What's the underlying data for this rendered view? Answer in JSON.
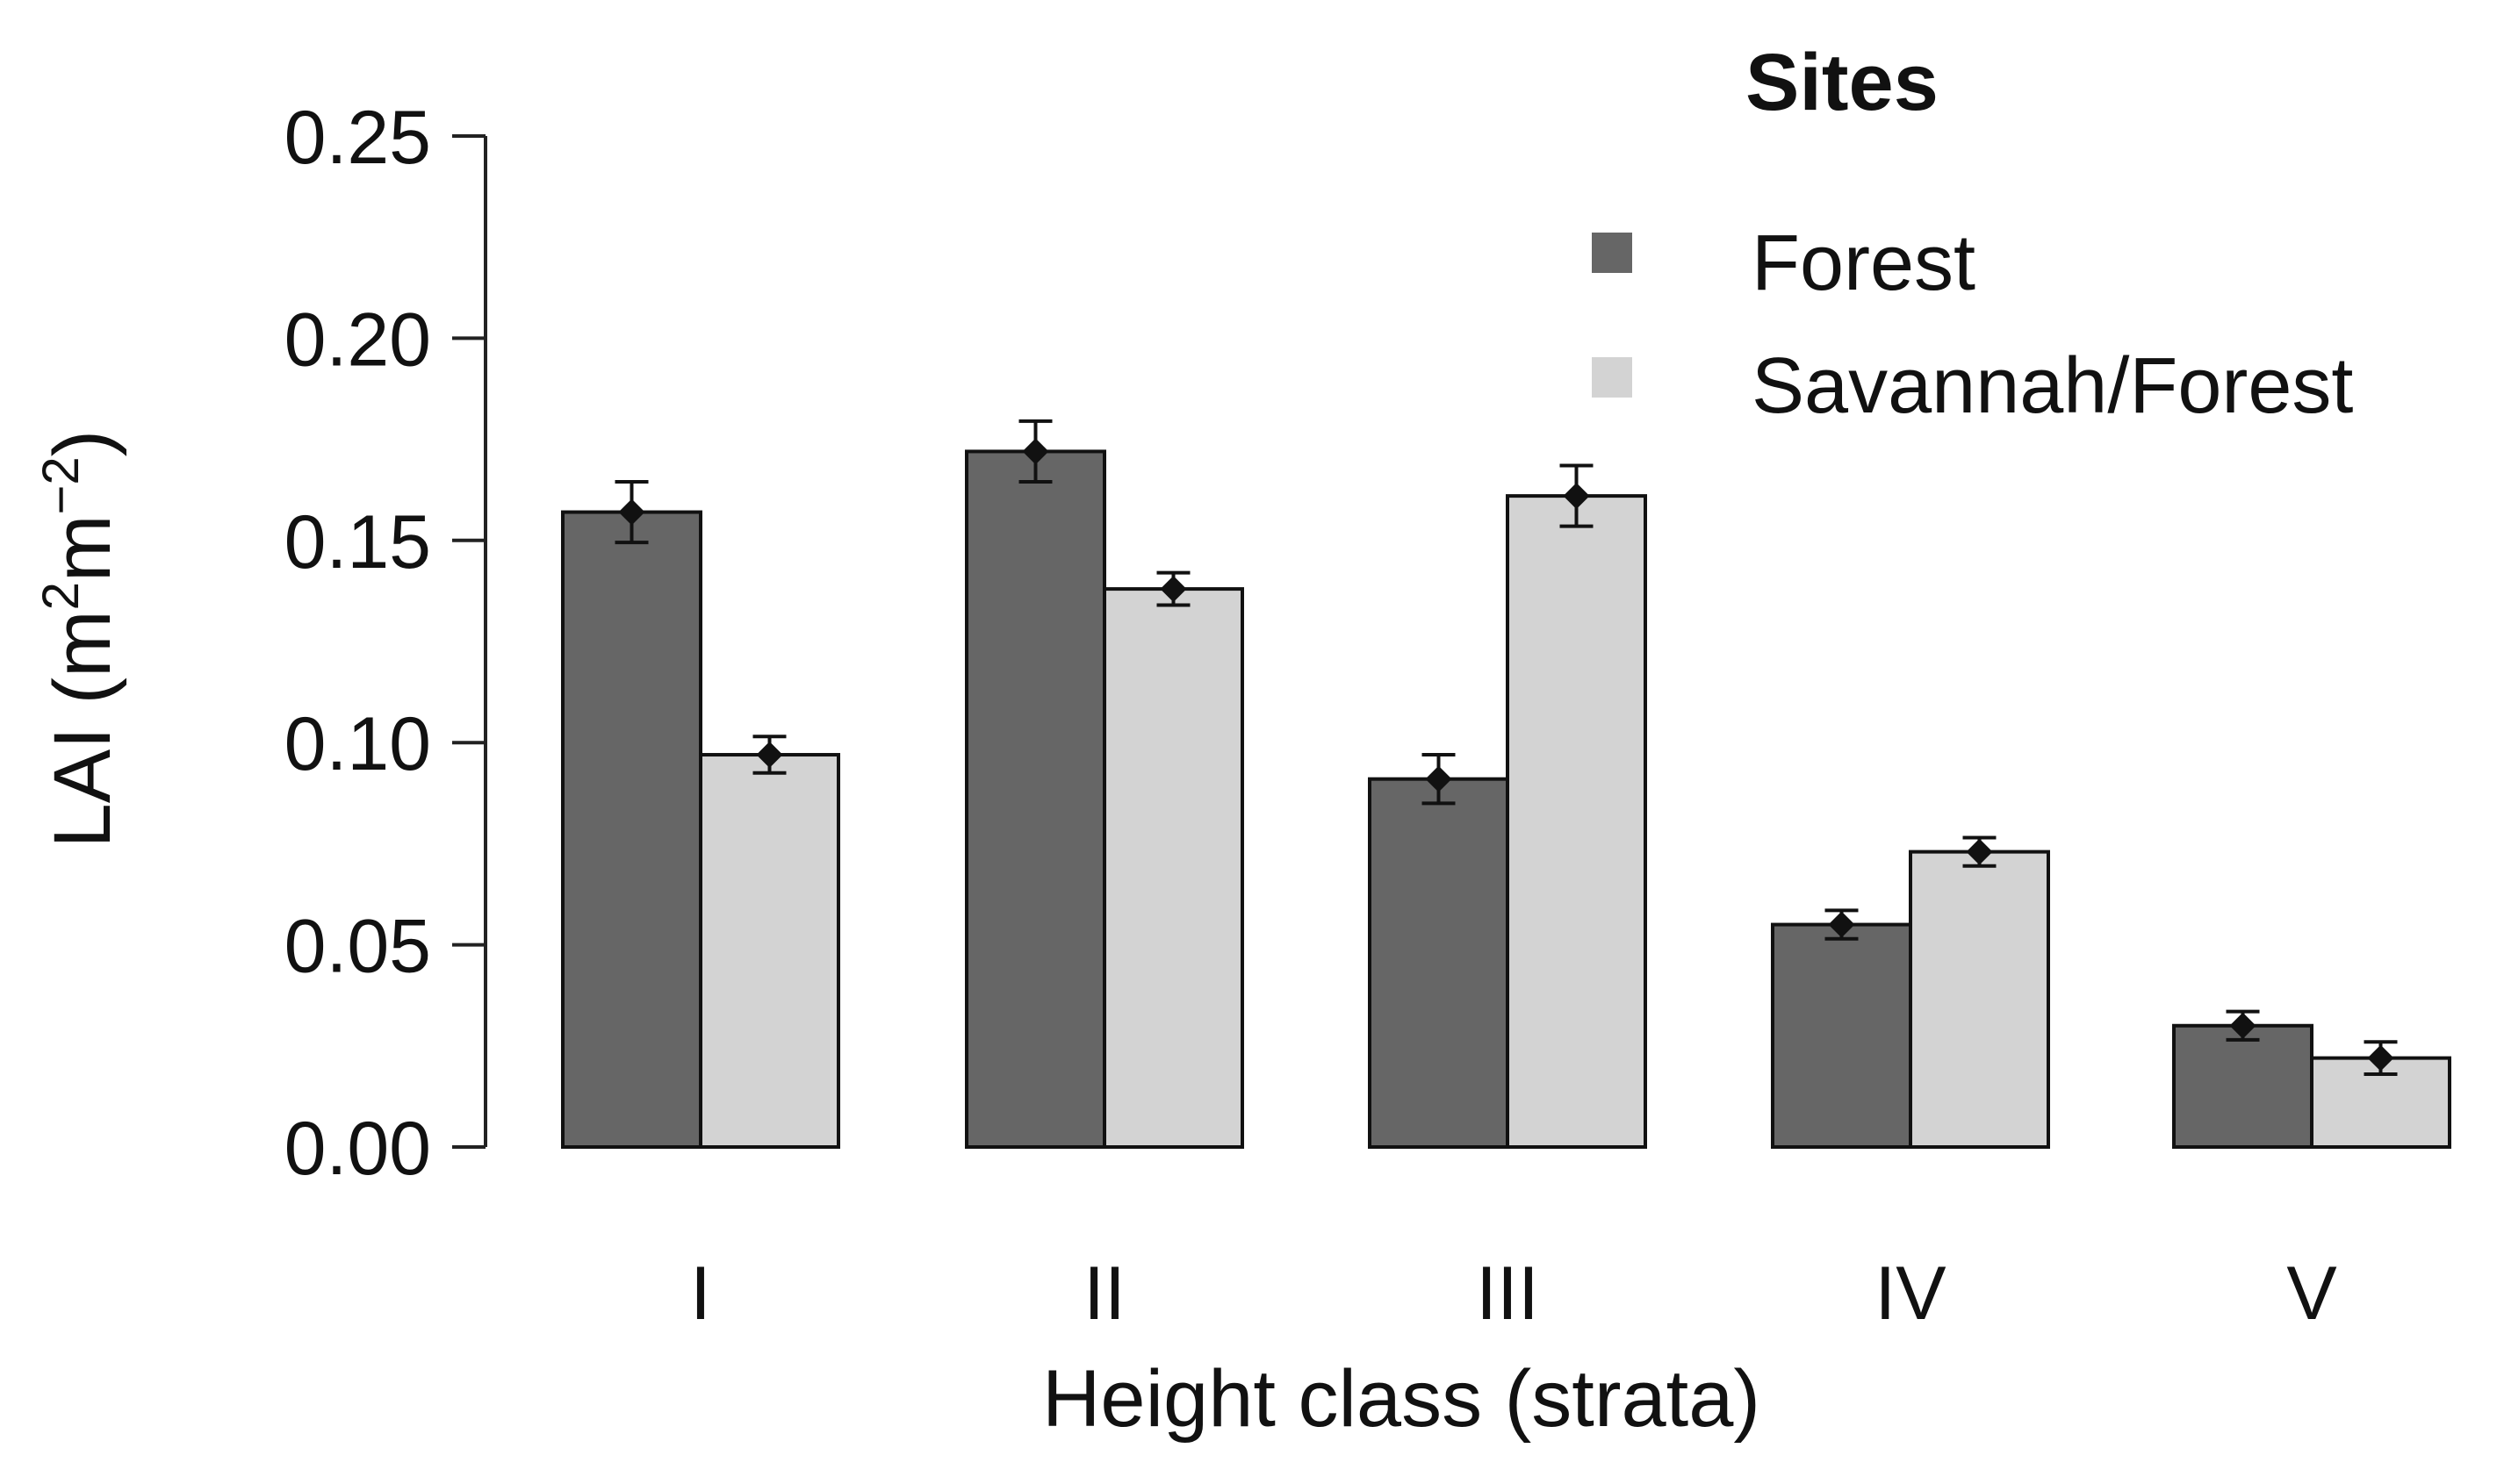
{
  "chart_data": {
    "type": "bar",
    "title": "",
    "xlabel": "Height class (strata)",
    "ylabel": "LAI (m2m−2)",
    "ylabel_parts": {
      "prefix": "LAI (m",
      "exp1": "2",
      "mid": "m",
      "exp2": "−2",
      "suffix": ")"
    },
    "ylim": [
      0,
      0.25
    ],
    "yticks": [
      "0.00",
      "0.05",
      "0.10",
      "0.15",
      "0.20",
      "0.25"
    ],
    "categories": [
      "I",
      "II",
      "III",
      "IV",
      "V"
    ],
    "legend_title": "Sites",
    "legend_position": "top-right",
    "series": [
      {
        "name": "Forest",
        "color": "#666666",
        "values": [
          0.157,
          0.172,
          0.091,
          0.055,
          0.03
        ],
        "errors": [
          0.0075,
          0.0075,
          0.006,
          0.0035,
          0.0035
        ]
      },
      {
        "name": "Savannah/Forest",
        "color": "#d3d3d3",
        "values": [
          0.097,
          0.138,
          0.161,
          0.073,
          0.022
        ],
        "errors": [
          0.0045,
          0.004,
          0.0075,
          0.0035,
          0.004
        ]
      }
    ]
  }
}
